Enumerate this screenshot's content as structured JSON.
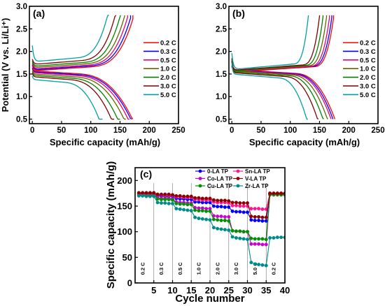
{
  "chart_data": [
    {
      "type": "line",
      "panel_label": "(a)",
      "xlabel": "Specific capacity (mAh/g)",
      "ylabel": "Potential (V vs. Li/Li⁺)",
      "xlim": [
        -5,
        250
      ],
      "ylim": [
        0.4,
        3.0
      ],
      "xticks": [
        0,
        50,
        100,
        150,
        200,
        250
      ],
      "yticks": [
        0.5,
        1.0,
        1.5,
        2.0,
        2.5,
        3.0
      ],
      "legend_position": "right",
      "series": [
        {
          "name": "0.2 C",
          "color": "#ff0000",
          "charge_capacity": 172,
          "discharge_capacity": 172,
          "plateau_charge": 1.62,
          "plateau_discharge": 1.52
        },
        {
          "name": "0.3 C",
          "color": "#0000ff",
          "charge_capacity": 168,
          "discharge_capacity": 170,
          "plateau_charge": 1.64,
          "plateau_discharge": 1.5
        },
        {
          "name": "0.5 C",
          "color": "#e6007e",
          "charge_capacity": 163,
          "discharge_capacity": 166,
          "plateau_charge": 1.66,
          "plateau_discharge": 1.48
        },
        {
          "name": "1.0 C",
          "color": "#666600",
          "charge_capacity": 158,
          "discharge_capacity": 160,
          "plateau_charge": 1.69,
          "plateau_discharge": 1.45
        },
        {
          "name": "2.0 C",
          "color": "#008000",
          "charge_capacity": 151,
          "discharge_capacity": 150,
          "plateau_charge": 1.72,
          "plateau_discharge": 1.42
        },
        {
          "name": "3.0 C",
          "color": "#800000",
          "charge_capacity": 143,
          "discharge_capacity": 140,
          "plateau_charge": 1.76,
          "plateau_discharge": 1.39
        },
        {
          "name": "5.0 C",
          "color": "#00a0a0",
          "charge_capacity": 131,
          "discharge_capacity": 120,
          "plateau_charge": 1.82,
          "plateau_discharge": 1.33
        }
      ]
    },
    {
      "type": "line",
      "panel_label": "(b)",
      "xlabel": "Specific capacity (mAh/g)",
      "ylabel": "",
      "xlim": [
        -5,
        250
      ],
      "ylim": [
        0.4,
        3.0
      ],
      "xticks": [
        0,
        50,
        100,
        150,
        200,
        250
      ],
      "yticks": [
        0.5,
        1.0,
        1.5,
        2.0,
        2.5,
        3.0
      ],
      "legend_position": "right",
      "series": [
        {
          "name": "0.2 C",
          "color": "#ff0000",
          "charge_capacity": 174,
          "discharge_capacity": 176,
          "plateau_charge": 1.59,
          "plateau_discharge": 1.55
        },
        {
          "name": "0.3 C",
          "color": "#0000ff",
          "charge_capacity": 171,
          "discharge_capacity": 173,
          "plateau_charge": 1.6,
          "plateau_discharge": 1.54
        },
        {
          "name": "0.5 C",
          "color": "#e6007e",
          "charge_capacity": 167,
          "discharge_capacity": 170,
          "plateau_charge": 1.6,
          "plateau_discharge": 1.53
        },
        {
          "name": "1.0 C",
          "color": "#666600",
          "charge_capacity": 162,
          "discharge_capacity": 164,
          "plateau_charge": 1.61,
          "plateau_discharge": 1.52
        },
        {
          "name": "2.0 C",
          "color": "#008000",
          "charge_capacity": 156,
          "discharge_capacity": 157,
          "plateau_charge": 1.62,
          "plateau_discharge": 1.5
        },
        {
          "name": "3.0 C",
          "color": "#800000",
          "charge_capacity": 150,
          "discharge_capacity": 148,
          "plateau_charge": 1.63,
          "plateau_discharge": 1.48
        },
        {
          "name": "5.0 C",
          "color": "#00a0a0",
          "charge_capacity": 131,
          "discharge_capacity": 130,
          "plateau_charge": 1.65,
          "plateau_discharge": 1.45
        }
      ]
    },
    {
      "type": "line",
      "panel_label": "(c)",
      "xlabel": "Cycle number",
      "ylabel": "Specific capacity (mAh/g)",
      "xlim": [
        0,
        40
      ],
      "ylim": [
        0,
        225
      ],
      "xticks": [
        5,
        10,
        15,
        20,
        25,
        30,
        35,
        40
      ],
      "yticks": [
        0,
        50,
        100,
        150,
        200
      ],
      "rate_dividers": [
        5,
        10,
        15,
        20,
        25,
        30,
        35
      ],
      "rate_labels": [
        {
          "label": "0.2 C",
          "x": 2.5
        },
        {
          "label": "0.3 C",
          "x": 7.5
        },
        {
          "label": "0.5 C",
          "x": 12.5
        },
        {
          "label": "1.0 C",
          "x": 17.5
        },
        {
          "label": "2.0 C",
          "x": 22.5
        },
        {
          "label": "3.0 C",
          "x": 27.5
        },
        {
          "label": "5.0 C",
          "x": 32.5
        },
        {
          "label": "0.2 C",
          "x": 37.5
        }
      ],
      "legend_position": "top-center",
      "series": [
        {
          "name": "0-LA TP",
          "color": "#0000ff",
          "values": [
            174,
            174,
            174,
            174,
            174,
            170,
            170,
            169,
            169,
            169,
            165,
            164,
            164,
            163,
            163,
            158,
            158,
            157,
            157,
            157,
            150,
            149,
            149,
            148,
            148,
            140,
            139,
            139,
            138,
            138,
            123,
            122,
            122,
            121,
            121,
            174,
            174,
            174,
            174,
            174
          ]
        },
        {
          "name": "Co-LA TP",
          "color": "#cc00cc",
          "values": [
            172,
            172,
            172,
            172,
            172,
            166,
            165,
            165,
            165,
            164,
            158,
            157,
            157,
            156,
            156,
            147,
            146,
            146,
            145,
            145,
            131,
            130,
            130,
            129,
            129,
            102,
            101,
            101,
            100,
            100,
            76,
            76,
            76,
            75,
            75,
            173,
            173,
            173,
            173,
            173
          ]
        },
        {
          "name": "Cu-LA TP",
          "color": "#009000",
          "values": [
            171,
            171,
            171,
            171,
            171,
            164,
            163,
            163,
            163,
            162,
            155,
            154,
            154,
            153,
            153,
            142,
            141,
            141,
            140,
            140,
            124,
            123,
            122,
            122,
            121,
            102,
            101,
            101,
            100,
            100,
            87,
            86,
            86,
            86,
            85,
            172,
            172,
            172,
            172,
            172
          ]
        },
        {
          "name": "Sn-LA TP",
          "color": "#ff1493",
          "values": [
            175,
            175,
            175,
            175,
            175,
            172,
            172,
            171,
            171,
            171,
            168,
            168,
            167,
            167,
            167,
            163,
            163,
            162,
            162,
            162,
            158,
            157,
            157,
            157,
            156,
            151,
            151,
            150,
            150,
            150,
            145,
            145,
            145,
            144,
            144,
            175,
            175,
            175,
            175,
            175
          ]
        },
        {
          "name": "V-LA TP",
          "color": "#8b0000",
          "values": [
            176,
            176,
            176,
            176,
            176,
            173,
            173,
            173,
            173,
            172,
            170,
            170,
            169,
            169,
            169,
            166,
            166,
            165,
            165,
            165,
            162,
            161,
            161,
            161,
            160,
            157,
            157,
            156,
            156,
            156,
            130,
            129,
            129,
            128,
            128,
            175,
            175,
            175,
            175,
            175
          ]
        },
        {
          "name": "Zr-LA TP",
          "color": "#008b8b",
          "values": [
            170,
            170,
            169,
            169,
            169,
            157,
            156,
            156,
            155,
            155,
            145,
            144,
            143,
            142,
            141,
            128,
            126,
            125,
            124,
            123,
            108,
            106,
            105,
            104,
            103,
            90,
            88,
            87,
            86,
            85,
            40,
            37,
            36,
            35,
            34,
            88,
            88,
            89,
            89,
            89
          ]
        }
      ]
    }
  ]
}
